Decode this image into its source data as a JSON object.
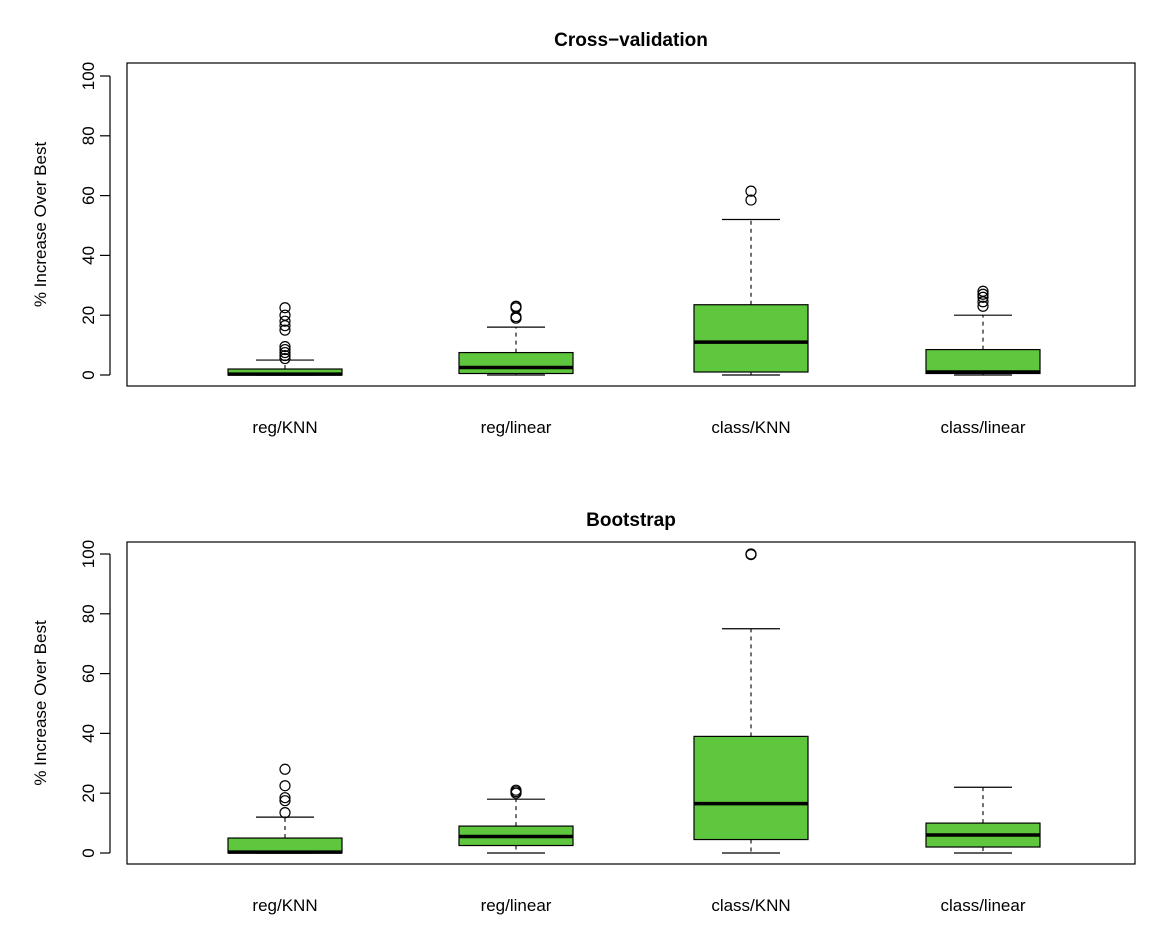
{
  "fill_color": "#5EC73E",
  "chart_data": [
    {
      "type": "boxplot",
      "title": "Cross−validation",
      "ylabel": "% Increase Over Best",
      "ylim": [
        0,
        100
      ],
      "yticks": [
        0,
        20,
        40,
        60,
        80,
        100
      ],
      "categories": [
        "reg/KNN",
        "reg/linear",
        "class/KNN",
        "class/linear"
      ],
      "boxes": [
        {
          "whisker_low": 0,
          "q1": 0,
          "median": 0.3,
          "q3": 2,
          "whisker_high": 5,
          "outliers": [
            5.5,
            6.5,
            7.5,
            8.5,
            9.5,
            15,
            16.5,
            18,
            20,
            22.5
          ]
        },
        {
          "whisker_low": 0,
          "q1": 0.5,
          "median": 2.5,
          "q3": 7.5,
          "whisker_high": 16,
          "outliers": [
            19,
            19.5,
            22.5,
            23
          ]
        },
        {
          "whisker_low": 0,
          "q1": 1,
          "median": 11,
          "q3": 23.5,
          "whisker_high": 52,
          "outliers": [
            58.5,
            61.5
          ]
        },
        {
          "whisker_low": 0,
          "q1": 0.5,
          "median": 1,
          "q3": 8.5,
          "whisker_high": 20,
          "outliers": [
            23,
            24.5,
            26,
            27,
            28
          ]
        }
      ]
    },
    {
      "type": "boxplot",
      "title": "Bootstrap",
      "ylabel": "% Increase Over Best",
      "ylim": [
        0,
        100
      ],
      "yticks": [
        0,
        20,
        40,
        60,
        80,
        100
      ],
      "categories": [
        "reg/KNN",
        "reg/linear",
        "class/KNN",
        "class/linear"
      ],
      "boxes": [
        {
          "whisker_low": 0,
          "q1": 0,
          "median": 0.3,
          "q3": 5,
          "whisker_high": 12,
          "outliers": [
            13.5,
            17.5,
            18.5,
            22.5,
            28
          ]
        },
        {
          "whisker_low": 0,
          "q1": 2.5,
          "median": 5.5,
          "q3": 9,
          "whisker_high": 18,
          "outliers": [
            20,
            20.5,
            21
          ]
        },
        {
          "whisker_low": 0,
          "q1": 4.5,
          "median": 16.5,
          "q3": 39,
          "whisker_high": 75,
          "outliers": [
            99.8,
            100
          ]
        },
        {
          "whisker_low": 0,
          "q1": 2,
          "median": 6,
          "q3": 10,
          "whisker_high": 22,
          "outliers": []
        }
      ]
    }
  ]
}
